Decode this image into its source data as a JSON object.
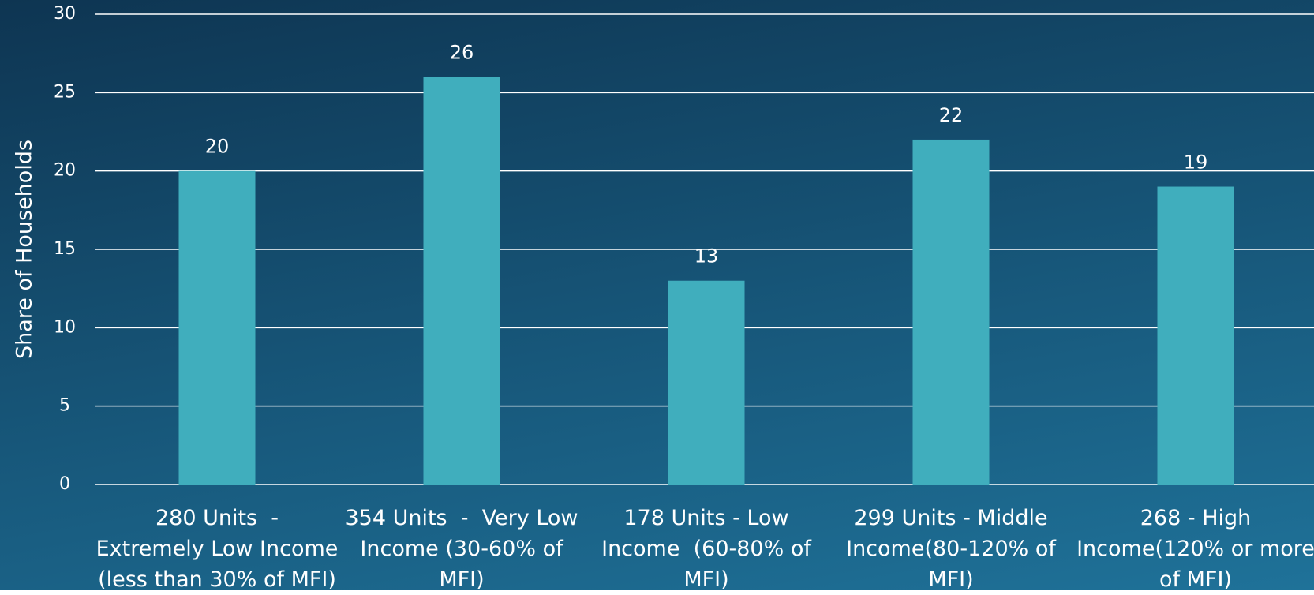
{
  "chart_data": {
    "type": "bar",
    "y_label": "Share of Households",
    "categories": [
      "280 Units  -  Extremely Low Income (less than 30% of MFI)",
      "354 Units  -  Very Low Income (30-60% of MFI)",
      "178 Units - Low Income  (60-80% of MFI)",
      "299 Units - Middle Income(80-120% of MFI)",
      "268 - High Income(120% or more of MFI)"
    ],
    "values": [
      20,
      26,
      13,
      22,
      19
    ],
    "color": "#40aebd",
    "ylim": [
      0,
      30
    ],
    "yticks": [
      0,
      5,
      10,
      15,
      20,
      25,
      30
    ],
    "grid": true
  }
}
